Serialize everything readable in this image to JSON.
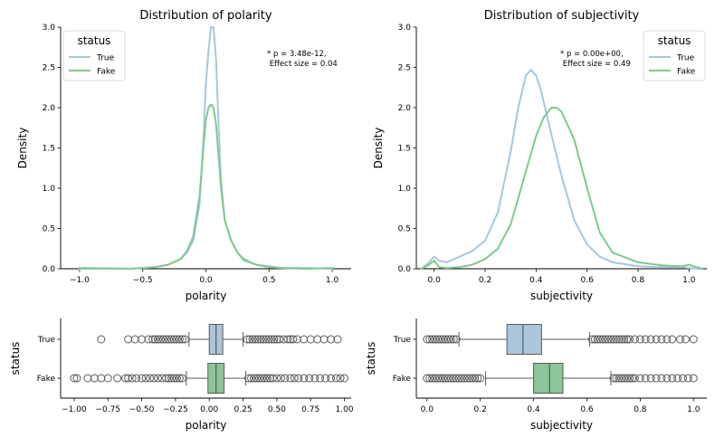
{
  "colors": {
    "true": "#a6c8de",
    "fake": "#7ec98f",
    "true_box": "#abc6da",
    "fake_box": "#8cc596",
    "box_edge": "#5a5a5a"
  },
  "chart_data": [
    {
      "type": "line",
      "subtype": "kde",
      "title": "Distribution of polarity",
      "xlabel": "polarity",
      "ylabel": "Density",
      "xlim": [
        -1.15,
        1.15
      ],
      "ylim": [
        0,
        3.0
      ],
      "x_ticks": [
        -1.0,
        -0.5,
        0.0,
        0.5,
        1.0
      ],
      "x_tick_labels": [
        "−1.0",
        "−0.5",
        "0.0",
        "0.5",
        "1.0"
      ],
      "y_ticks": [
        0,
        0.5,
        1.0,
        1.5,
        2.0,
        2.5,
        3.0
      ],
      "y_tick_labels": [
        "0.0",
        "0.5",
        "1.0",
        "1.5",
        "2.0",
        "2.5",
        "3.0"
      ],
      "legend": {
        "title": "status",
        "position": "top-left"
      },
      "annotation": [
        "* p = 3.48e-12,",
        " Effect size = 0.04"
      ],
      "series": [
        {
          "name": "True",
          "color": "#a6c8de",
          "x": [
            -1.0,
            -0.6,
            -0.4,
            -0.3,
            -0.2,
            -0.15,
            -0.1,
            -0.05,
            -0.02,
            0.0,
            0.02,
            0.04,
            0.06,
            0.08,
            0.1,
            0.12,
            0.15,
            0.2,
            0.25,
            0.3,
            0.4,
            0.5,
            0.6,
            0.8,
            1.0
          ],
          "y": [
            0.0,
            0.0,
            0.02,
            0.05,
            0.12,
            0.2,
            0.35,
            0.8,
            1.6,
            2.3,
            2.7,
            3.0,
            3.0,
            2.6,
            1.8,
            1.1,
            0.6,
            0.35,
            0.2,
            0.1,
            0.05,
            0.03,
            0.01,
            0.01,
            0.0
          ]
        },
        {
          "name": "Fake",
          "color": "#7ec98f",
          "x": [
            -1.0,
            -0.6,
            -0.4,
            -0.3,
            -0.2,
            -0.15,
            -0.1,
            -0.05,
            -0.02,
            0.0,
            0.02,
            0.04,
            0.06,
            0.08,
            0.1,
            0.12,
            0.15,
            0.2,
            0.25,
            0.3,
            0.4,
            0.5,
            0.6,
            0.8,
            1.0
          ],
          "y": [
            0.01,
            0.0,
            0.02,
            0.05,
            0.12,
            0.22,
            0.4,
            0.9,
            1.5,
            1.85,
            2.0,
            2.04,
            2.0,
            1.8,
            1.4,
            1.0,
            0.6,
            0.35,
            0.2,
            0.12,
            0.05,
            0.02,
            0.01,
            0.0,
            0.01
          ]
        }
      ]
    },
    {
      "type": "line",
      "subtype": "kde",
      "title": "Distribution of subjectivity",
      "xlabel": "subjectivity",
      "ylabel": "Density",
      "xlim": [
        -0.07,
        1.07
      ],
      "ylim": [
        0,
        3.0
      ],
      "x_ticks": [
        0.0,
        0.2,
        0.4,
        0.6,
        0.8,
        1.0
      ],
      "x_tick_labels": [
        "0.0",
        "0.2",
        "0.4",
        "0.6",
        "0.8",
        "1.0"
      ],
      "y_ticks": [
        0,
        0.5,
        1.0,
        1.5,
        2.0,
        2.5,
        3.0
      ],
      "y_tick_labels": [
        "0.0",
        "0.5",
        "1.0",
        "1.5",
        "2.0",
        "2.5",
        "3.0"
      ],
      "legend": {
        "title": "status",
        "position": "top-right"
      },
      "annotation": [
        "* p = 0.00e+00,",
        " Effect size = 0.49"
      ],
      "series": [
        {
          "name": "True",
          "color": "#a6c8de",
          "x": [
            -0.05,
            -0.02,
            0.0,
            0.02,
            0.05,
            0.1,
            0.15,
            0.2,
            0.25,
            0.3,
            0.33,
            0.36,
            0.38,
            0.4,
            0.42,
            0.45,
            0.5,
            0.55,
            0.6,
            0.65,
            0.7,
            0.8,
            0.9,
            0.97,
            1.0,
            1.03,
            1.05
          ],
          "y": [
            0.0,
            0.08,
            0.15,
            0.1,
            0.08,
            0.15,
            0.22,
            0.35,
            0.7,
            1.45,
            2.0,
            2.4,
            2.47,
            2.4,
            2.2,
            1.8,
            1.15,
            0.6,
            0.3,
            0.15,
            0.08,
            0.03,
            0.02,
            0.02,
            0.01,
            0.0,
            0.0
          ]
        },
        {
          "name": "Fake",
          "color": "#7ec98f",
          "x": [
            -0.05,
            -0.02,
            0.0,
            0.02,
            0.05,
            0.1,
            0.15,
            0.2,
            0.25,
            0.3,
            0.35,
            0.4,
            0.43,
            0.46,
            0.48,
            0.5,
            0.55,
            0.6,
            0.65,
            0.7,
            0.8,
            0.9,
            0.97,
            1.0,
            1.03,
            1.05
          ],
          "y": [
            0.0,
            0.05,
            0.1,
            0.02,
            0.01,
            0.02,
            0.05,
            0.12,
            0.25,
            0.55,
            1.1,
            1.65,
            1.88,
            2.0,
            2.0,
            1.95,
            1.6,
            1.0,
            0.45,
            0.2,
            0.08,
            0.04,
            0.03,
            0.05,
            0.02,
            0.0
          ]
        }
      ]
    },
    {
      "type": "boxplot",
      "xlabel": "polarity",
      "ylabel": "status",
      "xlim": [
        -1.1,
        1.05
      ],
      "x_ticks": [
        -1.0,
        -0.75,
        -0.5,
        -0.25,
        0.0,
        0.25,
        0.5,
        0.75,
        1.0
      ],
      "x_tick_labels": [
        "−1.00",
        "−0.75",
        "−0.50",
        "−0.25",
        "0.00",
        "0.25",
        "0.50",
        "0.75",
        "1.00"
      ],
      "categories": [
        "True",
        "Fake"
      ],
      "boxes": [
        {
          "name": "True",
          "whisker_low": -0.15,
          "q1": 0.0,
          "median": 0.05,
          "q3": 0.1,
          "whisker_high": 0.25,
          "color": "#abc6da",
          "outliers": [
            -0.8,
            -0.6,
            -0.55,
            -0.5,
            -0.45,
            -0.42,
            -0.4,
            -0.38,
            -0.36,
            -0.34,
            -0.32,
            -0.3,
            -0.28,
            -0.26,
            -0.24,
            -0.22,
            -0.2,
            -0.18,
            0.28,
            0.3,
            0.32,
            0.34,
            0.36,
            0.38,
            0.4,
            0.42,
            0.44,
            0.46,
            0.48,
            0.5,
            0.52,
            0.55,
            0.58,
            0.6,
            0.62,
            0.65,
            0.7,
            0.75,
            0.8,
            0.85,
            0.9,
            0.95
          ]
        },
        {
          "name": "Fake",
          "whisker_low": -0.17,
          "q1": -0.01,
          "median": 0.05,
          "q3": 0.11,
          "whisker_high": 0.27,
          "color": "#8cc596",
          "outliers": [
            -1.0,
            -0.98,
            -0.9,
            -0.85,
            -0.8,
            -0.75,
            -0.68,
            -0.62,
            -0.6,
            -0.57,
            -0.54,
            -0.5,
            -0.47,
            -0.44,
            -0.41,
            -0.38,
            -0.35,
            -0.32,
            -0.3,
            -0.28,
            -0.26,
            -0.24,
            -0.22,
            -0.2,
            0.29,
            0.31,
            0.33,
            0.35,
            0.37,
            0.39,
            0.41,
            0.43,
            0.45,
            0.47,
            0.5,
            0.53,
            0.56,
            0.6,
            0.63,
            0.66,
            0.7,
            0.74,
            0.78,
            0.82,
            0.86,
            0.9,
            0.94,
            0.97,
            1.0
          ]
        }
      ]
    },
    {
      "type": "boxplot",
      "xlabel": "subjectivity",
      "ylabel": "status",
      "xlim": [
        -0.04,
        1.05
      ],
      "x_ticks": [
        0.0,
        0.2,
        0.4,
        0.6,
        0.8,
        1.0
      ],
      "x_tick_labels": [
        "0.0",
        "0.2",
        "0.4",
        "0.6",
        "0.8",
        "1.0"
      ],
      "categories": [
        "True",
        "Fake"
      ],
      "boxes": [
        {
          "name": "True",
          "whisker_low": 0.12,
          "q1": 0.3,
          "median": 0.36,
          "q3": 0.43,
          "whisker_high": 0.61,
          "color": "#abc6da",
          "outliers": [
            0.0,
            0.01,
            0.02,
            0.03,
            0.04,
            0.05,
            0.06,
            0.07,
            0.08,
            0.09,
            0.1,
            0.11,
            0.62,
            0.63,
            0.64,
            0.65,
            0.66,
            0.67,
            0.68,
            0.69,
            0.7,
            0.71,
            0.72,
            0.73,
            0.74,
            0.75,
            0.76,
            0.78,
            0.8,
            0.82,
            0.84,
            0.86,
            0.88,
            0.9,
            0.92,
            0.95,
            0.97,
            1.0
          ]
        },
        {
          "name": "Fake",
          "whisker_low": 0.22,
          "q1": 0.4,
          "median": 0.46,
          "q3": 0.51,
          "whisker_high": 0.69,
          "color": "#8cc596",
          "outliers": [
            0.0,
            0.01,
            0.02,
            0.03,
            0.04,
            0.05,
            0.06,
            0.07,
            0.08,
            0.09,
            0.1,
            0.11,
            0.12,
            0.13,
            0.14,
            0.15,
            0.16,
            0.17,
            0.18,
            0.19,
            0.2,
            0.7,
            0.71,
            0.72,
            0.73,
            0.74,
            0.75,
            0.76,
            0.77,
            0.78,
            0.8,
            0.82,
            0.84,
            0.86,
            0.88,
            0.9,
            0.92,
            0.94,
            0.96,
            0.98,
            1.0
          ]
        }
      ]
    }
  ]
}
